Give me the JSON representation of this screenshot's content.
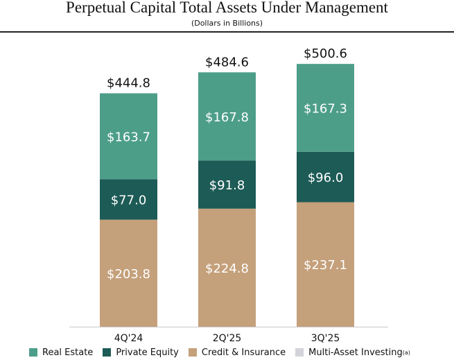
{
  "chart_data": {
    "type": "bar",
    "stacked": true,
    "title": "Perpetual Capital Total Assets Under Management",
    "subtitle": "(Dollars in Billions)",
    "categories": [
      "4Q'24",
      "2Q'25",
      "3Q'25"
    ],
    "totals": [
      "$444.8",
      "$484.6",
      "$500.6"
    ],
    "total_values": [
      444.8,
      484.6,
      500.6
    ],
    "series": [
      {
        "name": "Credit & Insurance",
        "color": "#c4a07b",
        "values": [
          203.8,
          224.8,
          237.1
        ],
        "labels": [
          "$203.8",
          "$224.8",
          "$237.1"
        ]
      },
      {
        "name": "Private Equity",
        "color": "#1d5b56",
        "values": [
          77.0,
          91.8,
          96.0
        ],
        "labels": [
          "$77.0",
          "$91.8",
          "$96.0"
        ]
      },
      {
        "name": "Real Estate",
        "color": "#4d9e89",
        "values": [
          163.7,
          167.8,
          167.3
        ],
        "labels": [
          "$163.7",
          "$167.8",
          "$167.3"
        ]
      },
      {
        "name": "Multi-Asset Investing",
        "color": "#d3d3db",
        "values": [
          0,
          0,
          0
        ],
        "labels": [
          "",
          "",
          ""
        ]
      }
    ],
    "legend": {
      "position": "bottom",
      "items": [
        {
          "label": "Real Estate",
          "color": "#4d9e89"
        },
        {
          "label": "Private Equity",
          "color": "#1d5b56"
        },
        {
          "label": "Credit & Insurance",
          "color": "#c4a07b"
        },
        {
          "label": "Multi-Asset Investing",
          "sup": "(a)",
          "color": "#d3d3db"
        }
      ]
    },
    "ylim": [
      0,
      500.6
    ],
    "grid": false
  }
}
